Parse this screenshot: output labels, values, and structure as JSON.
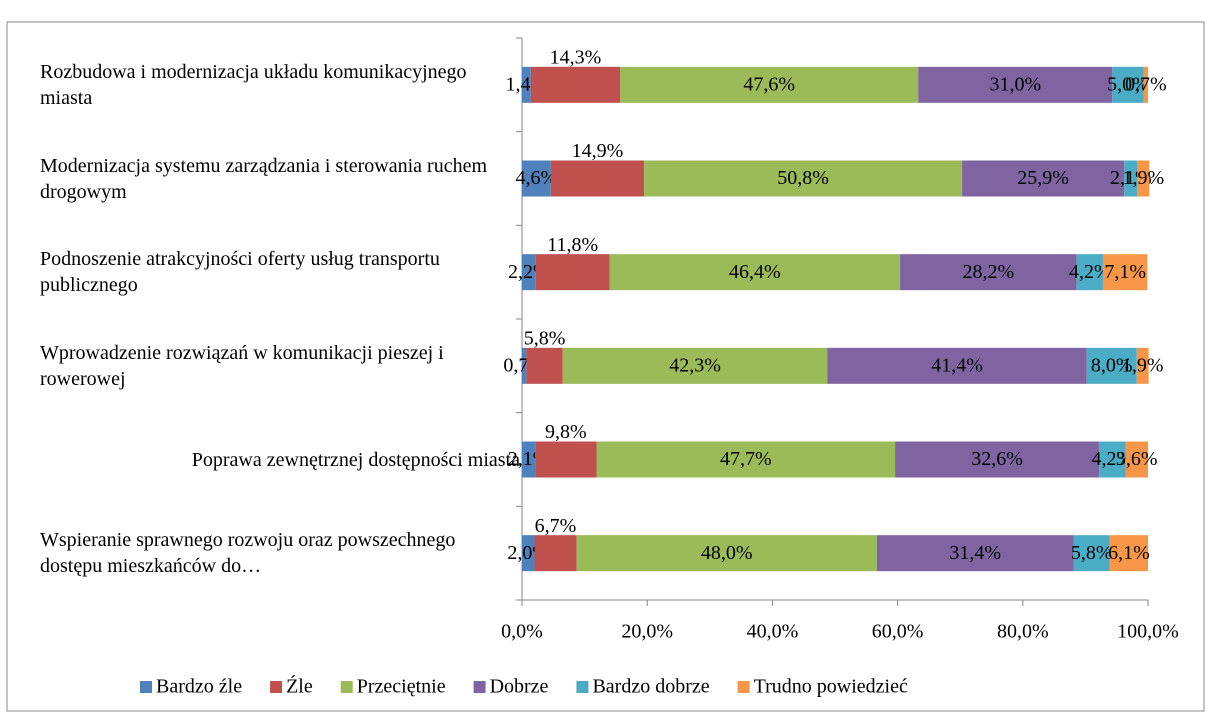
{
  "chart_data": {
    "type": "stacked_barh",
    "categories": [
      "Rozbudowa i modernizacja układu komunikacyjnego miasta",
      "Modernizacja systemu zarządzania i sterowania ruchem drogowym",
      "Podnoszenie atrakcyjności oferty usług transportu publicznego",
      "Wprowadzenie rozwiązań w komunikacji pieszej i rowerowej",
      "Poprawa zewnętrznej dostępności miasta",
      "Wspieranie sprawnego rozwoju oraz powszechnego dostępu mieszkańców do…"
    ],
    "series": [
      {
        "name": "Bardzo źle",
        "color": "#4f81bd",
        "values": [
          1.4,
          4.6,
          2.2,
          0.7,
          2.1,
          2.0
        ],
        "value_labels": [
          "1,4%",
          "4,6%",
          "2,2%",
          "0,7%",
          "2,1%",
          "2,0%"
        ]
      },
      {
        "name": "Źle",
        "color": "#c0504d",
        "values": [
          14.3,
          14.9,
          11.8,
          5.8,
          9.8,
          6.7
        ],
        "value_labels": [
          "14,3%",
          "14,9%",
          "11,8%",
          "5,8%",
          "9,8%",
          "6,7%"
        ]
      },
      {
        "name": "Przeciętnie",
        "color": "#9bbb59",
        "values": [
          47.6,
          50.8,
          46.4,
          42.3,
          47.7,
          48.0
        ],
        "value_labels": [
          "47,6%",
          "50,8%",
          "46,4%",
          "42,3%",
          "47,7%",
          "48,0%"
        ]
      },
      {
        "name": "Dobrze",
        "color": "#8064a2",
        "values": [
          31.0,
          25.9,
          28.2,
          41.4,
          32.6,
          31.4
        ],
        "value_labels": [
          "31,0%",
          "25,9%",
          "28,2%",
          "41,4%",
          "32,6%",
          "31,4%"
        ]
      },
      {
        "name": "Bardzo dobrze",
        "color": "#4bacc6",
        "values": [
          5.0,
          2.1,
          4.2,
          8.0,
          4.2,
          5.8
        ],
        "value_labels": [
          "5,0%",
          "2,1%",
          "4,2%",
          "8,0%",
          "4,2%",
          "5,8%"
        ]
      },
      {
        "name": "Trudno powiedzieć",
        "color": "#f79646",
        "values": [
          0.7,
          1.9,
          7.1,
          1.9,
          3.6,
          6.1
        ],
        "value_labels": [
          "0,7%",
          "1,9%",
          "7,1%",
          "1,9%",
          "3,6%",
          "6,1%"
        ]
      }
    ],
    "xlim": [
      0,
      100
    ],
    "xticks": [
      {
        "value": 0,
        "label": "0,0%"
      },
      {
        "value": 20,
        "label": "20,0%"
      },
      {
        "value": 40,
        "label": "40,0%"
      },
      {
        "value": 60,
        "label": "60,0%"
      },
      {
        "value": 80,
        "label": "80,0%"
      },
      {
        "value": 100,
        "label": "100,0%"
      }
    ],
    "legend": "bottom"
  }
}
